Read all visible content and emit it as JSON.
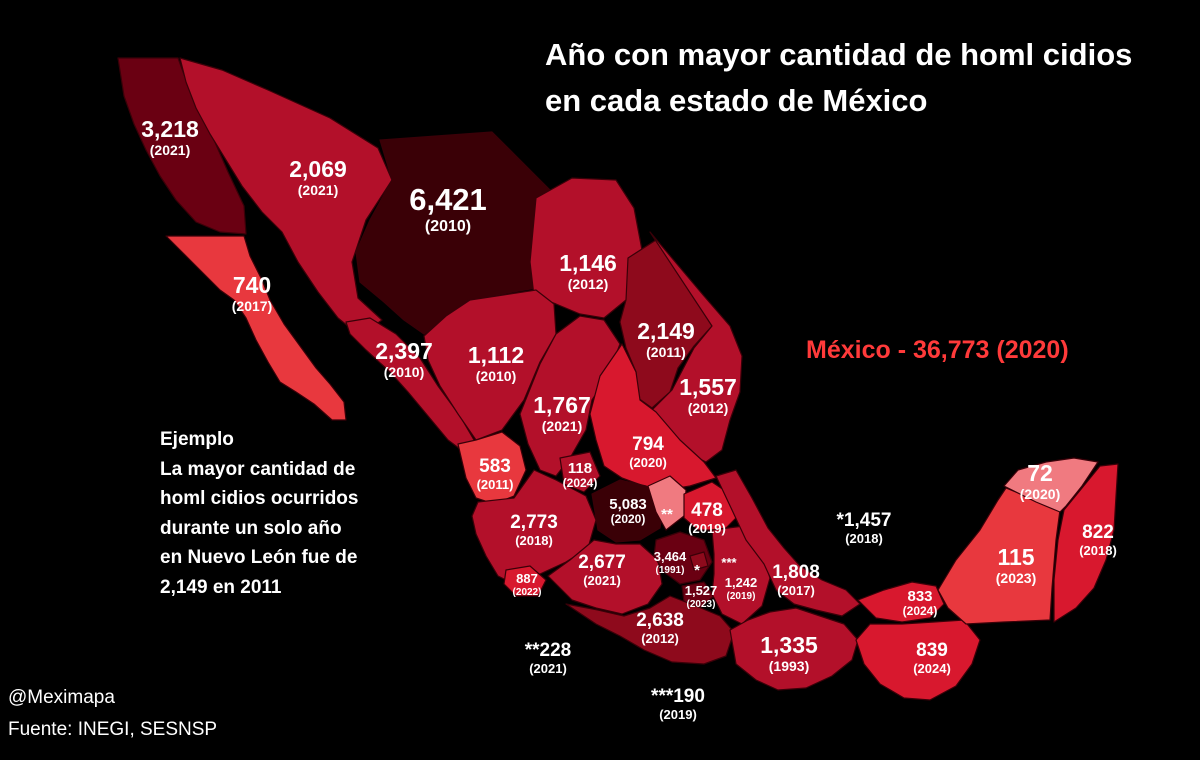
{
  "title_line1": "Año con mayor cantidad de homl cidios",
  "title_line2": "en cada estado de México",
  "national": "México - 36,773 (2020)",
  "example": {
    "line1": "Ejemplo",
    "line2": "La mayor cantidad de",
    "line3": "homl cidios ocurridos",
    "line4": "durante un solo año",
    "line5": "en Nuevo León fue de",
    "line6": "2,149 en 2011"
  },
  "handle": "@Meximapa",
  "source": "Fuente: INEGI, SESNSP",
  "colors": {
    "background": "#000000",
    "darkest": "#3a0006",
    "dark": "#6a0012",
    "mid_dark": "#8e0a1c",
    "mid": "#b3102a",
    "bright": "#d8182e",
    "light": "#e8383e",
    "lightest": "#f07a80",
    "national_text": "#ff3a3a"
  },
  "states": [
    {
      "id": "baja-california",
      "value": "3,218",
      "year": "(2021)"
    },
    {
      "id": "sonora",
      "value": "2,069",
      "year": "(2021)"
    },
    {
      "id": "chihuahua",
      "value": "6,421",
      "year": "(2010)"
    },
    {
      "id": "baja-california-sur",
      "value": "740",
      "year": "(2017)"
    },
    {
      "id": "coahuila",
      "value": "1,146",
      "year": "(2012)"
    },
    {
      "id": "nuevo-leon",
      "value": "2,149",
      "year": "(2011)"
    },
    {
      "id": "tamaulipas",
      "value": "1,557",
      "year": "(2012)"
    },
    {
      "id": "sinaloa",
      "value": "2,397",
      "year": "(2010)"
    },
    {
      "id": "durango",
      "value": "1,112",
      "year": "(2010)"
    },
    {
      "id": "zacatecas",
      "value": "1,767",
      "year": "(2021)"
    },
    {
      "id": "san-luis-potosi",
      "value": "794",
      "year": "(2020)"
    },
    {
      "id": "nayarit",
      "value": "583",
      "year": "(2011)"
    },
    {
      "id": "aguascalientes",
      "value": "118",
      "year": "(2024)"
    },
    {
      "id": "guanajuato",
      "value": "5,083",
      "year": "(2020)"
    },
    {
      "id": "queretaro",
      "value": "**",
      "year": ""
    },
    {
      "id": "hidalgo",
      "value": "478",
      "year": "(2019)"
    },
    {
      "id": "jalisco",
      "value": "2,773",
      "year": "(2018)"
    },
    {
      "id": "colima",
      "value": "887",
      "year": "(2022)"
    },
    {
      "id": "michoacan",
      "value": "2,677",
      "year": "(2021)"
    },
    {
      "id": "estado-de-mexico",
      "value": "3,464",
      "year": "(1991)"
    },
    {
      "id": "cdmx",
      "value": "*",
      "year": ""
    },
    {
      "id": "morelos",
      "value": "1,527",
      "year": "(2023)"
    },
    {
      "id": "tlaxcala",
      "value": "***",
      "year": ""
    },
    {
      "id": "puebla",
      "value": "1,242",
      "year": "(2019)"
    },
    {
      "id": "veracruz",
      "value": "1,808",
      "year": "(2017)"
    },
    {
      "id": "guerrero",
      "value": "2,638",
      "year": "(2012)"
    },
    {
      "id": "oaxaca",
      "value": "1,335",
      "year": "(1993)"
    },
    {
      "id": "tabasco",
      "value": "833",
      "year": "(2024)"
    },
    {
      "id": "chiapas",
      "value": "839",
      "year": "(2024)"
    },
    {
      "id": "campeche",
      "value": "115",
      "year": "(2023)"
    },
    {
      "id": "yucatan",
      "value": "72",
      "year": "(2020)"
    },
    {
      "id": "quintana-roo",
      "value": "822",
      "year": "(2018)"
    }
  ],
  "footnotes": [
    {
      "id": "cdmx-note",
      "value": "*1,457",
      "year": "(2018)"
    },
    {
      "id": "queretaro-note",
      "value": "**228",
      "year": "(2021)"
    },
    {
      "id": "tlaxcala-note",
      "value": "***190",
      "year": "(2019)"
    }
  ]
}
